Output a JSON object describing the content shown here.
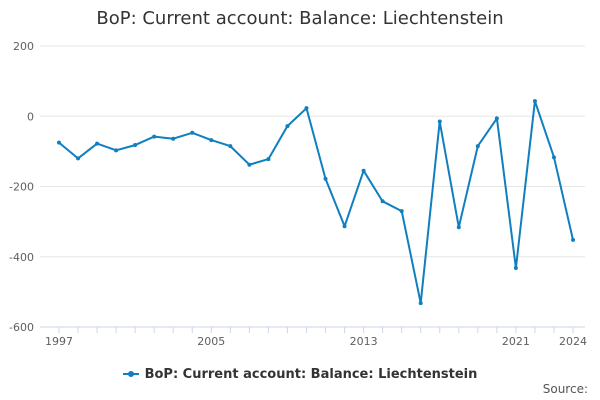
{
  "chart_data": {
    "type": "line",
    "title": "BoP: Current account: Balance: Liechtenstein",
    "xlabel": "",
    "ylabel": "",
    "x": [
      1997,
      1998,
      1999,
      2000,
      2001,
      2002,
      2003,
      2004,
      2005,
      2006,
      2007,
      2008,
      2009,
      2010,
      2011,
      2012,
      2013,
      2014,
      2015,
      2016,
      2017,
      2018,
      2019,
      2020,
      2021,
      2022,
      2023,
      2024
    ],
    "xticks": [
      "1997",
      "2005",
      "2013",
      "2021",
      "2024"
    ],
    "yticks": [
      "200",
      "0",
      "-200",
      "-400",
      "-600"
    ],
    "ylim": [
      -600,
      200
    ],
    "xlim": [
      1997,
      2024
    ],
    "grid": true,
    "legend_position": "bottom",
    "series": [
      {
        "name": "BoP: Current account: Balance: Liechtenstein",
        "color": "#0f7fbf",
        "values": [
          -75,
          -120,
          -78,
          -97,
          -82,
          -58,
          -64,
          -47,
          -68,
          -85,
          -138,
          -122,
          -28,
          23,
          -178,
          -313,
          -155,
          -242,
          -270,
          -532,
          -15,
          -316,
          -85,
          -6,
          -432,
          43,
          -117,
          -352
        ]
      }
    ]
  },
  "legend": {
    "label": "BoP: Current account: Balance: Liechtenstein"
  },
  "footer": {
    "source": "Source:"
  }
}
